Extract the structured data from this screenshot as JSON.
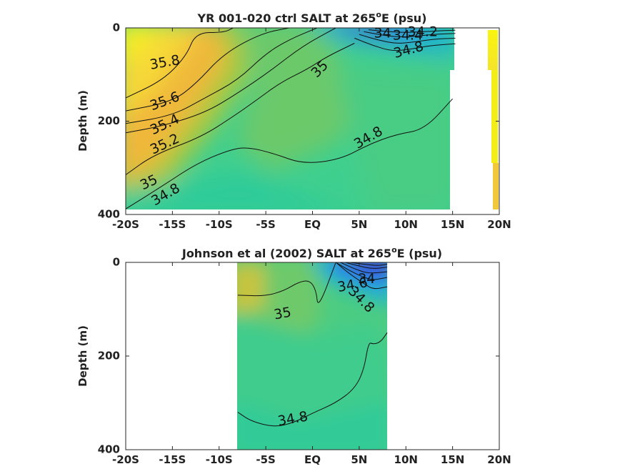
{
  "chart_data": [
    {
      "type": "heatmap",
      "title_main": "YR 001-020 ctrl SALT at 265",
      "title_sup": "o",
      "title_end": "E (psu)",
      "xlabel": "",
      "ylabel": "Depth (m)",
      "xlim": [
        -20,
        20
      ],
      "ylim": [
        0,
        400
      ],
      "y_reversed": true,
      "x_ticks": [
        -20,
        -15,
        -10,
        -5,
        0,
        5,
        10,
        15,
        20
      ],
      "x_tick_labels": [
        "-20S",
        "-15S",
        "-10S",
        "-5S",
        "EQ",
        "5N",
        "10N",
        "15N",
        "20N"
      ],
      "y_ticks": [
        0,
        200,
        400
      ],
      "y_tick_labels": [
        "0",
        "200",
        "400"
      ],
      "data_extent": {
        "lat": [
          -20,
          15.3
        ],
        "depth_max": 388
      },
      "coast_mask_lat": [
        15.3,
        18.9
      ],
      "colormap": [
        "#3a31d0",
        "#2a7ff2",
        "#1ab0d6",
        "#2ccaa0",
        "#5cc86a",
        "#a8c93e",
        "#f0b83a",
        "#f6d838",
        "#f9f50e"
      ],
      "contours": [
        {
          "level": 35.8,
          "lat": [
            -20,
            -16,
            -13.5,
            -12.5,
            -9.5,
            -8.5
          ],
          "depth": [
            150,
            112,
            60,
            10,
            10,
            0
          ]
        },
        {
          "level": 35.6,
          "lat": [
            -20,
            -15,
            -12.5,
            -9.5,
            -5.5,
            -2.5
          ],
          "depth": [
            178,
            158,
            120,
            55,
            12,
            0
          ]
        },
        {
          "level": 35.4,
          "lat": [
            -20,
            -15,
            -11.5,
            -8,
            -5,
            -2.5,
            0.5
          ],
          "depth": [
            205,
            188,
            150,
            112,
            55,
            25,
            0
          ]
        },
        {
          "level": 35.2,
          "lat": [
            -20,
            -16,
            -11.5,
            -8,
            -4.5,
            -1,
            2.5
          ],
          "depth": [
            225,
            210,
            182,
            140,
            92,
            38,
            0
          ]
        },
        {
          "level": 35,
          "lat": [
            -20,
            -17,
            -12,
            -8.5,
            -6,
            -3.5,
            -0.5,
            1.5,
            4.5
          ],
          "depth": [
            315,
            272,
            235,
            190,
            155,
            118,
            88,
            62,
            33
          ]
        },
        {
          "level": 34.8,
          "lat": [
            -20,
            -16,
            -12.5,
            -9,
            -7,
            -4,
            -1,
            3,
            6,
            9,
            12,
            15
          ],
          "depth": [
            388,
            338,
            292,
            262,
            255,
            270,
            292,
            282,
            250,
            228,
            218,
            152
          ]
        },
        {
          "level": 34.8,
          "lat": [
            4.5,
            6.5,
            8.5,
            10.5,
            12.5,
            15.3
          ],
          "depth": [
            22,
            38,
            50,
            46,
            38,
            34
          ]
        },
        {
          "level": 34.6,
          "lat": [
            5,
            7,
            9,
            11,
            13,
            15.3
          ],
          "depth": [
            14,
            26,
            34,
            30,
            24,
            22
          ]
        },
        {
          "level": 34.4,
          "lat": [
            5.5,
            7.5,
            9.5,
            11.5,
            13.5,
            15.3
          ],
          "depth": [
            8,
            16,
            20,
            17,
            13,
            12
          ]
        },
        {
          "level": 34.2,
          "lat": [
            6,
            8,
            10,
            12,
            13.8,
            15.3
          ],
          "depth": [
            4,
            8,
            10,
            8,
            6,
            5
          ]
        }
      ],
      "contour_labels": [
        {
          "text": "35.8",
          "lat": -15.8,
          "depth": 75,
          "angle": -10
        },
        {
          "text": "35.6",
          "lat": -15.8,
          "depth": 158,
          "angle": -20
        },
        {
          "text": "35.4",
          "lat": -15.8,
          "depth": 208,
          "angle": -25
        },
        {
          "text": "35.2",
          "lat": -15.8,
          "depth": 250,
          "angle": -25
        },
        {
          "text": "35",
          "lat": -17.5,
          "depth": 332,
          "angle": -25
        },
        {
          "text": "34.8",
          "lat": -15.7,
          "depth": 358,
          "angle": -30
        },
        {
          "text": "35",
          "lat": 0.8,
          "depth": 89,
          "angle": -45
        },
        {
          "text": "34.8",
          "lat": 6,
          "depth": 236,
          "angle": -30
        },
        {
          "text": "34.8",
          "lat": 10.3,
          "depth": 48,
          "angle": -15
        },
        {
          "text": "34.4",
          "lat": 10.2,
          "depth": 17,
          "angle": 0
        },
        {
          "text": "34",
          "lat": 7.5,
          "depth": 12,
          "angle": 0
        },
        {
          "text": "34.2",
          "lat": 11.8,
          "depth": 9,
          "angle": 0
        }
      ]
    },
    {
      "type": "heatmap",
      "title_main": "Johnson et al (2002) SALT at 265",
      "title_sup": "o",
      "title_end": "E (psu)",
      "xlabel": "",
      "ylabel": "Depth (m)",
      "xlim": [
        -20,
        20
      ],
      "ylim": [
        0,
        400
      ],
      "y_reversed": true,
      "x_ticks": [
        -20,
        -15,
        -10,
        -5,
        0,
        5,
        10,
        15,
        20
      ],
      "x_tick_labels": [
        "-20S",
        "-15S",
        "-10S",
        "-5S",
        "EQ",
        "5N",
        "10N",
        "15N",
        "20N"
      ],
      "y_ticks": [
        0,
        200,
        400
      ],
      "y_tick_labels": [
        "0",
        "200",
        "400"
      ],
      "data_extent": {
        "lat": [
          -8,
          8
        ],
        "depth_max": 400
      },
      "contours": [
        {
          "level": 35,
          "lat": [
            -8,
            -5,
            -3,
            -1.5,
            -0.3,
            0.4,
            0.6,
            2.5
          ],
          "depth": [
            70,
            72,
            60,
            42,
            38,
            60,
            100,
            0
          ]
        },
        {
          "level": 34.8,
          "lat": [
            -8,
            -6.5,
            -4,
            -2,
            0,
            2.5,
            4.5,
            5.5,
            6,
            6.5,
            7.3,
            8
          ],
          "depth": [
            320,
            340,
            352,
            342,
            322,
            300,
            270,
            230,
            170,
            175,
            170,
            150
          ]
        },
        {
          "level": 34.8,
          "lat": [
            2.5,
            4,
            5.5,
            6.5,
            8
          ],
          "depth": [
            0,
            25,
            45,
            58,
            52
          ]
        },
        {
          "level": 34.6,
          "lat": [
            2.5,
            4,
            5.5,
            6.5,
            8
          ],
          "depth": [
            0,
            18,
            32,
            38,
            32
          ]
        },
        {
          "level": 34.4,
          "lat": [
            3,
            4.5,
            6,
            8
          ],
          "depth": [
            0,
            14,
            24,
            20
          ]
        },
        {
          "level": 34.2,
          "lat": [
            3.5,
            5,
            6.5,
            8
          ],
          "depth": [
            0,
            8,
            14,
            10
          ]
        },
        {
          "level": 34,
          "lat": [
            4,
            5.5,
            7,
            8
          ],
          "depth": [
            0,
            4,
            7,
            4
          ]
        }
      ],
      "contour_labels": [
        {
          "text": "35",
          "lat": -3.2,
          "depth": 110,
          "angle": -10
        },
        {
          "text": "34.8",
          "lat": -2.1,
          "depth": 335,
          "angle": -10
        },
        {
          "text": "34",
          "lat": 5.8,
          "depth": 36,
          "angle": 0
        },
        {
          "text": "34.6",
          "lat": 4.3,
          "depth": 49,
          "angle": -10
        },
        {
          "text": "34.8",
          "lat": 5.2,
          "depth": 80,
          "angle": 45
        }
      ]
    }
  ]
}
